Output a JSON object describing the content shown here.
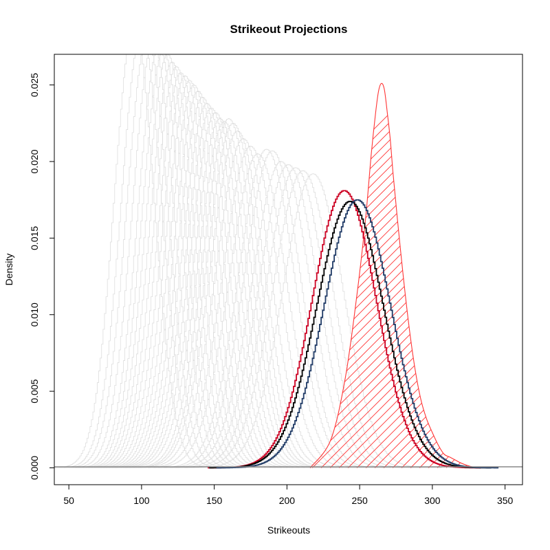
{
  "chart_data": {
    "type": "line",
    "title": "Strikeout Projections",
    "xlabel": "Strikeouts",
    "ylabel": "Density",
    "xlim": [
      40,
      362
    ],
    "ylim": [
      -0.0011,
      0.027
    ],
    "x_ticks": [
      50,
      100,
      150,
      200,
      250,
      300,
      350
    ],
    "y_ticks": [
      0.0,
      0.005,
      0.01,
      0.015,
      0.02,
      0.025
    ],
    "x_tick_labels": [
      "50",
      "100",
      "150",
      "200",
      "250",
      "300",
      "350"
    ],
    "y_tick_labels": [
      "0.000",
      "0.005",
      "0.010",
      "0.015",
      "0.020",
      "0.025"
    ],
    "grid": false,
    "legend": "none",
    "baseline": 0,
    "background_series": {
      "color": "#d9d9d9",
      "style": "step",
      "curves": [
        {
          "mean": 95,
          "peak": 0.029
        },
        {
          "mean": 100,
          "peak": 0.0285
        },
        {
          "mean": 104,
          "peak": 0.028
        },
        {
          "mean": 108,
          "peak": 0.0278
        },
        {
          "mean": 112,
          "peak": 0.0275
        },
        {
          "mean": 115,
          "peak": 0.0272
        },
        {
          "mean": 118,
          "peak": 0.027
        },
        {
          "mean": 121,
          "peak": 0.0265
        },
        {
          "mean": 124,
          "peak": 0.0262
        },
        {
          "mean": 127,
          "peak": 0.0258
        },
        {
          "mean": 130,
          "peak": 0.0256
        },
        {
          "mean": 133,
          "peak": 0.0253
        },
        {
          "mean": 136,
          "peak": 0.025
        },
        {
          "mean": 139,
          "peak": 0.0246
        },
        {
          "mean": 142,
          "peak": 0.0242
        },
        {
          "mean": 145,
          "peak": 0.0238
        },
        {
          "mean": 148,
          "peak": 0.0235
        },
        {
          "mean": 151,
          "peak": 0.0232
        },
        {
          "mean": 154,
          "peak": 0.0228
        },
        {
          "mean": 157,
          "peak": 0.0226
        },
        {
          "mean": 160,
          "peak": 0.0228
        },
        {
          "mean": 163,
          "peak": 0.0225
        },
        {
          "mean": 166,
          "peak": 0.022
        },
        {
          "mean": 170,
          "peak": 0.0215
        },
        {
          "mean": 175,
          "peak": 0.021
        },
        {
          "mean": 180,
          "peak": 0.0205
        },
        {
          "mean": 186,
          "peak": 0.0208
        },
        {
          "mean": 190,
          "peak": 0.0207
        },
        {
          "mean": 196,
          "peak": 0.02
        },
        {
          "mean": 201,
          "peak": 0.0198
        },
        {
          "mean": 206,
          "peak": 0.0196
        },
        {
          "mean": 211,
          "peak": 0.0194
        },
        {
          "mean": 218,
          "peak": 0.0192
        }
      ]
    },
    "series": [
      {
        "color": "#cc0022",
        "style": "step",
        "mean": 239.5,
        "peak": 0.0181
      },
      {
        "color": "#000000",
        "style": "step",
        "mean": 243.5,
        "peak": 0.0174
      },
      {
        "color": "#1f3a66",
        "style": "step",
        "mean": 248.5,
        "peak": 0.0175
      }
    ],
    "highlight_density": {
      "color": "#ff3333",
      "fill": "diagonal-hatch",
      "x": [
        216,
        230,
        240,
        248,
        254,
        258,
        261,
        263,
        265,
        267,
        269,
        271,
        273,
        276,
        280,
        284,
        288,
        292,
        296,
        300,
        304,
        308,
        312,
        316,
        320,
        326,
        332
      ],
      "y": [
        0.0,
        0.0018,
        0.0058,
        0.0112,
        0.0162,
        0.0205,
        0.0232,
        0.0246,
        0.0251,
        0.0247,
        0.0232,
        0.0215,
        0.0192,
        0.0162,
        0.0125,
        0.0092,
        0.0065,
        0.0045,
        0.0032,
        0.0023,
        0.0015,
        0.0009,
        0.0007,
        0.0005,
        0.0003,
        0.0001,
        0.0
      ]
    }
  }
}
